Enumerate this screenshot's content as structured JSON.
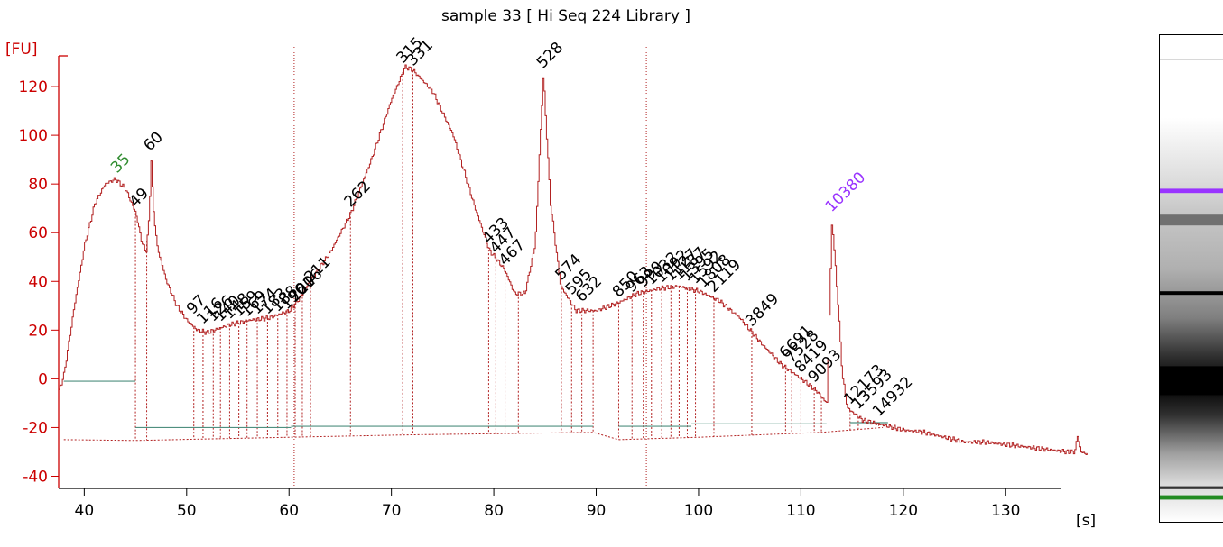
{
  "chart_data": {
    "type": "line",
    "title": "sample 33  [ Hi Seq 224 Library ]",
    "ylabel": "[FU]",
    "xlabel": "[s]",
    "xlim": [
      37.5,
      138
    ],
    "ylim": [
      -45,
      140
    ],
    "x_ticks": [
      40,
      50,
      60,
      70,
      80,
      90,
      100,
      110,
      120,
      130
    ],
    "y_ticks": [
      -40,
      -20,
      0,
      20,
      40,
      60,
      80,
      100,
      120
    ],
    "colors": {
      "axis": "#cc0000",
      "trace": "#b22222",
      "grid_dotted": "#b22222",
      "baseline": "#4f8f7f",
      "lower_marker": "#2e8b2e",
      "upper_marker": "#9933ff",
      "label": "#000000"
    },
    "trace_knots": [
      [
        37.5,
        -5
      ],
      [
        38,
        2
      ],
      [
        39,
        30
      ],
      [
        40,
        55
      ],
      [
        41,
        72
      ],
      [
        42,
        80
      ],
      [
        43,
        82
      ],
      [
        44,
        78
      ],
      [
        45,
        68
      ],
      [
        45.6,
        56
      ],
      [
        46,
        52
      ],
      [
        46.3,
        66
      ],
      [
        46.5,
        90
      ],
      [
        46.7,
        70
      ],
      [
        47.1,
        54
      ],
      [
        48,
        40
      ],
      [
        49,
        30
      ],
      [
        50,
        24
      ],
      [
        51,
        20
      ],
      [
        52,
        19
      ],
      [
        54,
        22
      ],
      [
        56,
        24
      ],
      [
        58,
        25
      ],
      [
        60,
        28
      ],
      [
        61,
        33
      ],
      [
        62,
        40
      ],
      [
        64,
        52
      ],
      [
        66,
        68
      ],
      [
        68,
        90
      ],
      [
        70,
        115
      ],
      [
        71.3,
        128
      ],
      [
        72,
        127
      ],
      [
        74,
        118
      ],
      [
        76,
        100
      ],
      [
        78,
        72
      ],
      [
        79.5,
        53
      ],
      [
        81,
        45
      ],
      [
        82,
        35
      ],
      [
        83,
        35
      ],
      [
        84,
        55
      ],
      [
        84.8,
        125
      ],
      [
        85.5,
        72
      ],
      [
        86.5,
        38
      ],
      [
        88,
        28
      ],
      [
        90,
        28
      ],
      [
        92,
        31
      ],
      [
        94,
        35
      ],
      [
        96,
        37
      ],
      [
        98,
        38
      ],
      [
        100,
        36
      ],
      [
        102,
        32
      ],
      [
        104,
        25
      ],
      [
        106,
        15
      ],
      [
        108,
        6
      ],
      [
        110,
        0
      ],
      [
        111.5,
        -5
      ],
      [
        112.5,
        -10
      ],
      [
        113,
        66
      ],
      [
        113.6,
        30
      ],
      [
        114,
        2
      ],
      [
        114.5,
        -12
      ],
      [
        116,
        -17
      ],
      [
        118,
        -19
      ],
      [
        120,
        -21
      ],
      [
        122,
        -22
      ],
      [
        124,
        -24
      ],
      [
        126,
        -26
      ],
      [
        128,
        -26
      ],
      [
        130,
        -27
      ],
      [
        132,
        -28
      ],
      [
        134,
        -29
      ],
      [
        136,
        -30
      ],
      [
        136.7,
        -30
      ],
      [
        137,
        -23
      ],
      [
        137.3,
        -30
      ],
      [
        138,
        -31
      ]
    ],
    "vlines_dashed": [
      45.0,
      46.1,
      50.7,
      51.6,
      52.6,
      53.3,
      54.2,
      55.1,
      55.9,
      56.9,
      57.9,
      58.9,
      59.8,
      60.6,
      61.3,
      62.1,
      66.0,
      71.1,
      72.1,
      79.5,
      80.2,
      81.1,
      82.4,
      86.6,
      87.6,
      88.6,
      89.7,
      92.2,
      93.5,
      94.6,
      95.4,
      96.4,
      97.3,
      98.1,
      98.9,
      99.7,
      101.5,
      105.2,
      108.5,
      109.1,
      110.0,
      111.3,
      112.0,
      114.8,
      115.6,
      117.6
    ],
    "vlines_plain": [
      60.5,
      94.9
    ],
    "baselines": [
      [
        38,
        45,
        -1
      ],
      [
        45,
        60.2,
        -20
      ],
      [
        60.2,
        89.7,
        -19.5
      ],
      [
        92.2,
        99.3,
        -19.5
      ],
      [
        99.3,
        112.5,
        -18.5
      ],
      [
        114.8,
        118.5,
        -18
      ]
    ],
    "lower_envelope": [
      [
        38,
        -25
      ],
      [
        45,
        -25.3
      ],
      [
        60,
        -24
      ],
      [
        72,
        -23
      ],
      [
        89.7,
        -22
      ],
      [
        92.2,
        -25
      ],
      [
        100,
        -24
      ],
      [
        112,
        -22
      ],
      [
        118,
        -20
      ]
    ],
    "peaks": [
      {
        "label": "35",
        "x": 43.2,
        "y": 82,
        "color": "#2e8b2e"
      },
      {
        "label": "49",
        "x": 45.0,
        "y": 68,
        "color": "#000000"
      },
      {
        "label": "60",
        "x": 46.4,
        "y": 91,
        "color": "#000000"
      },
      {
        "label": "97",
        "x": 50.6,
        "y": 24,
        "color": "#000000"
      },
      {
        "label": "116",
        "x": 51.6,
        "y": 20,
        "color": "#000000"
      },
      {
        "label": "126",
        "x": 52.6,
        "y": 21,
        "color": "#000000"
      },
      {
        "label": "140",
        "x": 53.3,
        "y": 21,
        "color": "#000000"
      },
      {
        "label": "148",
        "x": 54.2,
        "y": 22,
        "color": "#000000"
      },
      {
        "label": "159",
        "x": 55.1,
        "y": 23,
        "color": "#000000"
      },
      {
        "label": "169",
        "x": 55.9,
        "y": 23,
        "color": "#000000"
      },
      {
        "label": "174",
        "x": 56.9,
        "y": 24,
        "color": "#000000"
      },
      {
        "label": "183",
        "x": 57.9,
        "y": 24,
        "color": "#000000"
      },
      {
        "label": "188",
        "x": 58.9,
        "y": 25,
        "color": "#000000"
      },
      {
        "label": "196",
        "x": 59.8,
        "y": 26,
        "color": "#000000"
      },
      {
        "label": "201",
        "x": 60.6,
        "y": 29,
        "color": "#000000"
      },
      {
        "label": "206",
        "x": 61.3,
        "y": 32,
        "color": "#000000"
      },
      {
        "label": "211",
        "x": 62.1,
        "y": 37,
        "color": "#000000"
      },
      {
        "label": "262",
        "x": 66.0,
        "y": 68,
        "color": "#000000"
      },
      {
        "label": "315",
        "x": 71.1,
        "y": 127,
        "color": "#000000"
      },
      {
        "label": "331",
        "x": 72.1,
        "y": 126,
        "color": "#000000"
      },
      {
        "label": "433",
        "x": 79.5,
        "y": 53,
        "color": "#000000"
      },
      {
        "label": "447",
        "x": 80.2,
        "y": 49,
        "color": "#000000"
      },
      {
        "label": "467",
        "x": 81.1,
        "y": 44,
        "color": "#000000"
      },
      {
        "label": "528",
        "x": 84.8,
        "y": 125,
        "color": "#000000"
      },
      {
        "label": "574",
        "x": 86.6,
        "y": 38,
        "color": "#000000"
      },
      {
        "label": "595",
        "x": 87.6,
        "y": 32,
        "color": "#000000"
      },
      {
        "label": "632",
        "x": 88.6,
        "y": 29,
        "color": "#000000"
      },
      {
        "label": "850",
        "x": 92.2,
        "y": 31,
        "color": "#000000"
      },
      {
        "label": "963",
        "x": 93.5,
        "y": 33,
        "color": "#000000"
      },
      {
        "label": "999",
        "x": 94.6,
        "y": 35,
        "color": "#000000"
      },
      {
        "label": "1032",
        "x": 95.4,
        "y": 36,
        "color": "#000000"
      },
      {
        "label": "1092",
        "x": 96.4,
        "y": 37,
        "color": "#000000"
      },
      {
        "label": "1127",
        "x": 97.3,
        "y": 37.5,
        "color": "#000000"
      },
      {
        "label": "1187",
        "x": 98.1,
        "y": 38,
        "color": "#000000"
      },
      {
        "label": "1395",
        "x": 98.9,
        "y": 37.5,
        "color": "#000000"
      },
      {
        "label": "1592",
        "x": 99.7,
        "y": 36.5,
        "color": "#000000"
      },
      {
        "label": "1808",
        "x": 100.5,
        "y": 35,
        "color": "#000000"
      },
      {
        "label": "2119",
        "x": 101.5,
        "y": 33,
        "color": "#000000"
      },
      {
        "label": "3849",
        "x": 105.2,
        "y": 19,
        "color": "#000000"
      },
      {
        "label": "6691",
        "x": 108.5,
        "y": 6,
        "color": "#000000"
      },
      {
        "label": "7528",
        "x": 109.1,
        "y": 4,
        "color": "#000000"
      },
      {
        "label": "8419",
        "x": 110.0,
        "y": 0,
        "color": "#000000"
      },
      {
        "label": "9093",
        "x": 111.3,
        "y": -4,
        "color": "#000000"
      },
      {
        "label": "10380",
        "x": 113.0,
        "y": 66,
        "color": "#9933ff"
      },
      {
        "label": "12173",
        "x": 114.8,
        "y": -13,
        "color": "#000000"
      },
      {
        "label": "13593",
        "x": 115.6,
        "y": -15,
        "color": "#000000"
      },
      {
        "label": "14932",
        "x": 117.6,
        "y": -18,
        "color": "#000000"
      }
    ]
  },
  "gel": {
    "bands": [
      {
        "level": 0.05,
        "width": 0.5,
        "color": "#d8d8d8"
      },
      {
        "level": 0.32,
        "width": 1.2,
        "color": "#9933ff"
      },
      {
        "level": 0.38,
        "width": 3.0,
        "color": "#707070"
      },
      {
        "level": 0.53,
        "width": 1.0,
        "color": "#000000"
      },
      {
        "level": 0.71,
        "width": 8.0,
        "color": "#000000"
      },
      {
        "level": 0.93,
        "width": 0.8,
        "color": "#333333"
      },
      {
        "level": 0.95,
        "width": 1.2,
        "color": "#228b22"
      }
    ]
  }
}
